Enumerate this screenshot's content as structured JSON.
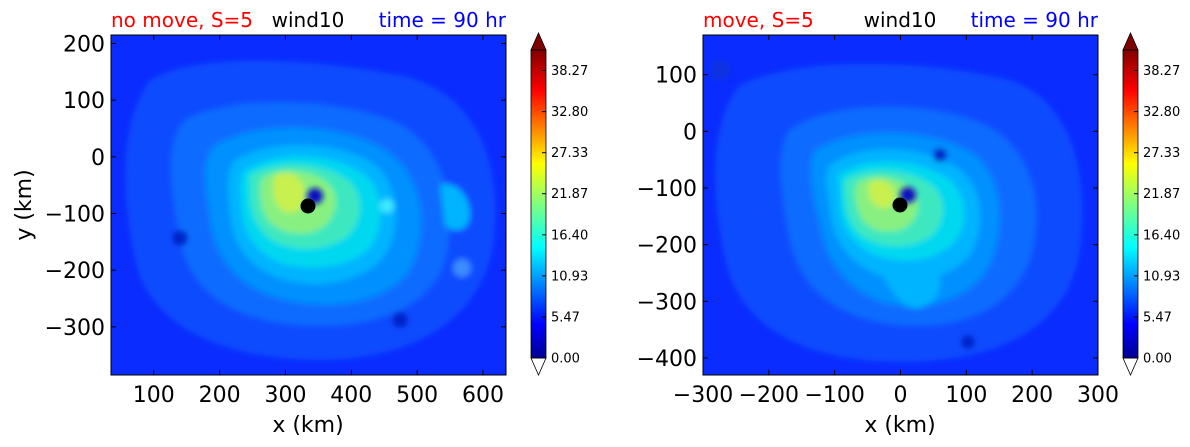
{
  "chart_data": [
    {
      "type": "heatmap",
      "title_left": "no move, S=5",
      "title_center": "wind10",
      "title_right": "time = 90 hr",
      "xlabel": "x (km)",
      "ylabel": "y (km)",
      "xlim": [
        35,
        635
      ],
      "ylim": [
        -385,
        215
      ],
      "xticks": [
        "100",
        "200",
        "300",
        "400",
        "500",
        "600"
      ],
      "xtick_values": [
        100,
        200,
        300,
        400,
        500,
        600
      ],
      "yticks": [
        "200",
        "100",
        "0",
        "−100",
        "−200",
        "−300"
      ],
      "ytick_values": [
        200,
        100,
        0,
        -100,
        -200,
        -300
      ],
      "storm_center": [
        335,
        -82
      ],
      "max_wind_center": [
        300,
        -60
      ],
      "colorbar": {
        "vmin": 0.0,
        "vmax": 41.0,
        "tick_values": [
          0.0,
          5.47,
          10.93,
          16.4,
          21.87,
          27.33,
          32.8,
          38.27
        ],
        "tick_labels": [
          "0.00",
          "5.47",
          "10.93",
          "16.40",
          "21.87",
          "27.33",
          "32.80",
          "38.27"
        ]
      }
    },
    {
      "type": "heatmap",
      "title_left": "move, S=5",
      "title_center": "wind10",
      "title_right": "time = 90 hr",
      "xlabel": "x (km)",
      "ylabel": "",
      "xlim": [
        -300,
        300
      ],
      "ylim": [
        -430,
        170
      ],
      "xticks": [
        "−300",
        "−200",
        "−100",
        "0",
        "100",
        "200",
        "300"
      ],
      "xtick_values": [
        -300,
        -200,
        -100,
        0,
        100,
        200,
        300
      ],
      "yticks": [
        "100",
        "0",
        "−100",
        "−200",
        "−300",
        "−400"
      ],
      "ytick_values": [
        100,
        0,
        -100,
        -200,
        -300,
        -400
      ],
      "storm_center": [
        -3,
        -133
      ],
      "max_wind_center": [
        -30,
        -110
      ],
      "colorbar": {
        "vmin": 0.0,
        "vmax": 41.0,
        "tick_values": [
          0.0,
          5.47,
          10.93,
          16.4,
          21.87,
          27.33,
          32.8,
          38.27
        ],
        "tick_labels": [
          "0.00",
          "5.47",
          "10.93",
          "16.40",
          "21.87",
          "27.33",
          "32.80",
          "38.27"
        ]
      }
    }
  ],
  "colors": {
    "title_left": "#ff0000",
    "title_center": "#000000",
    "title_right": "#0000ff",
    "background_field": "#0a2cff",
    "eye": "#000000"
  }
}
